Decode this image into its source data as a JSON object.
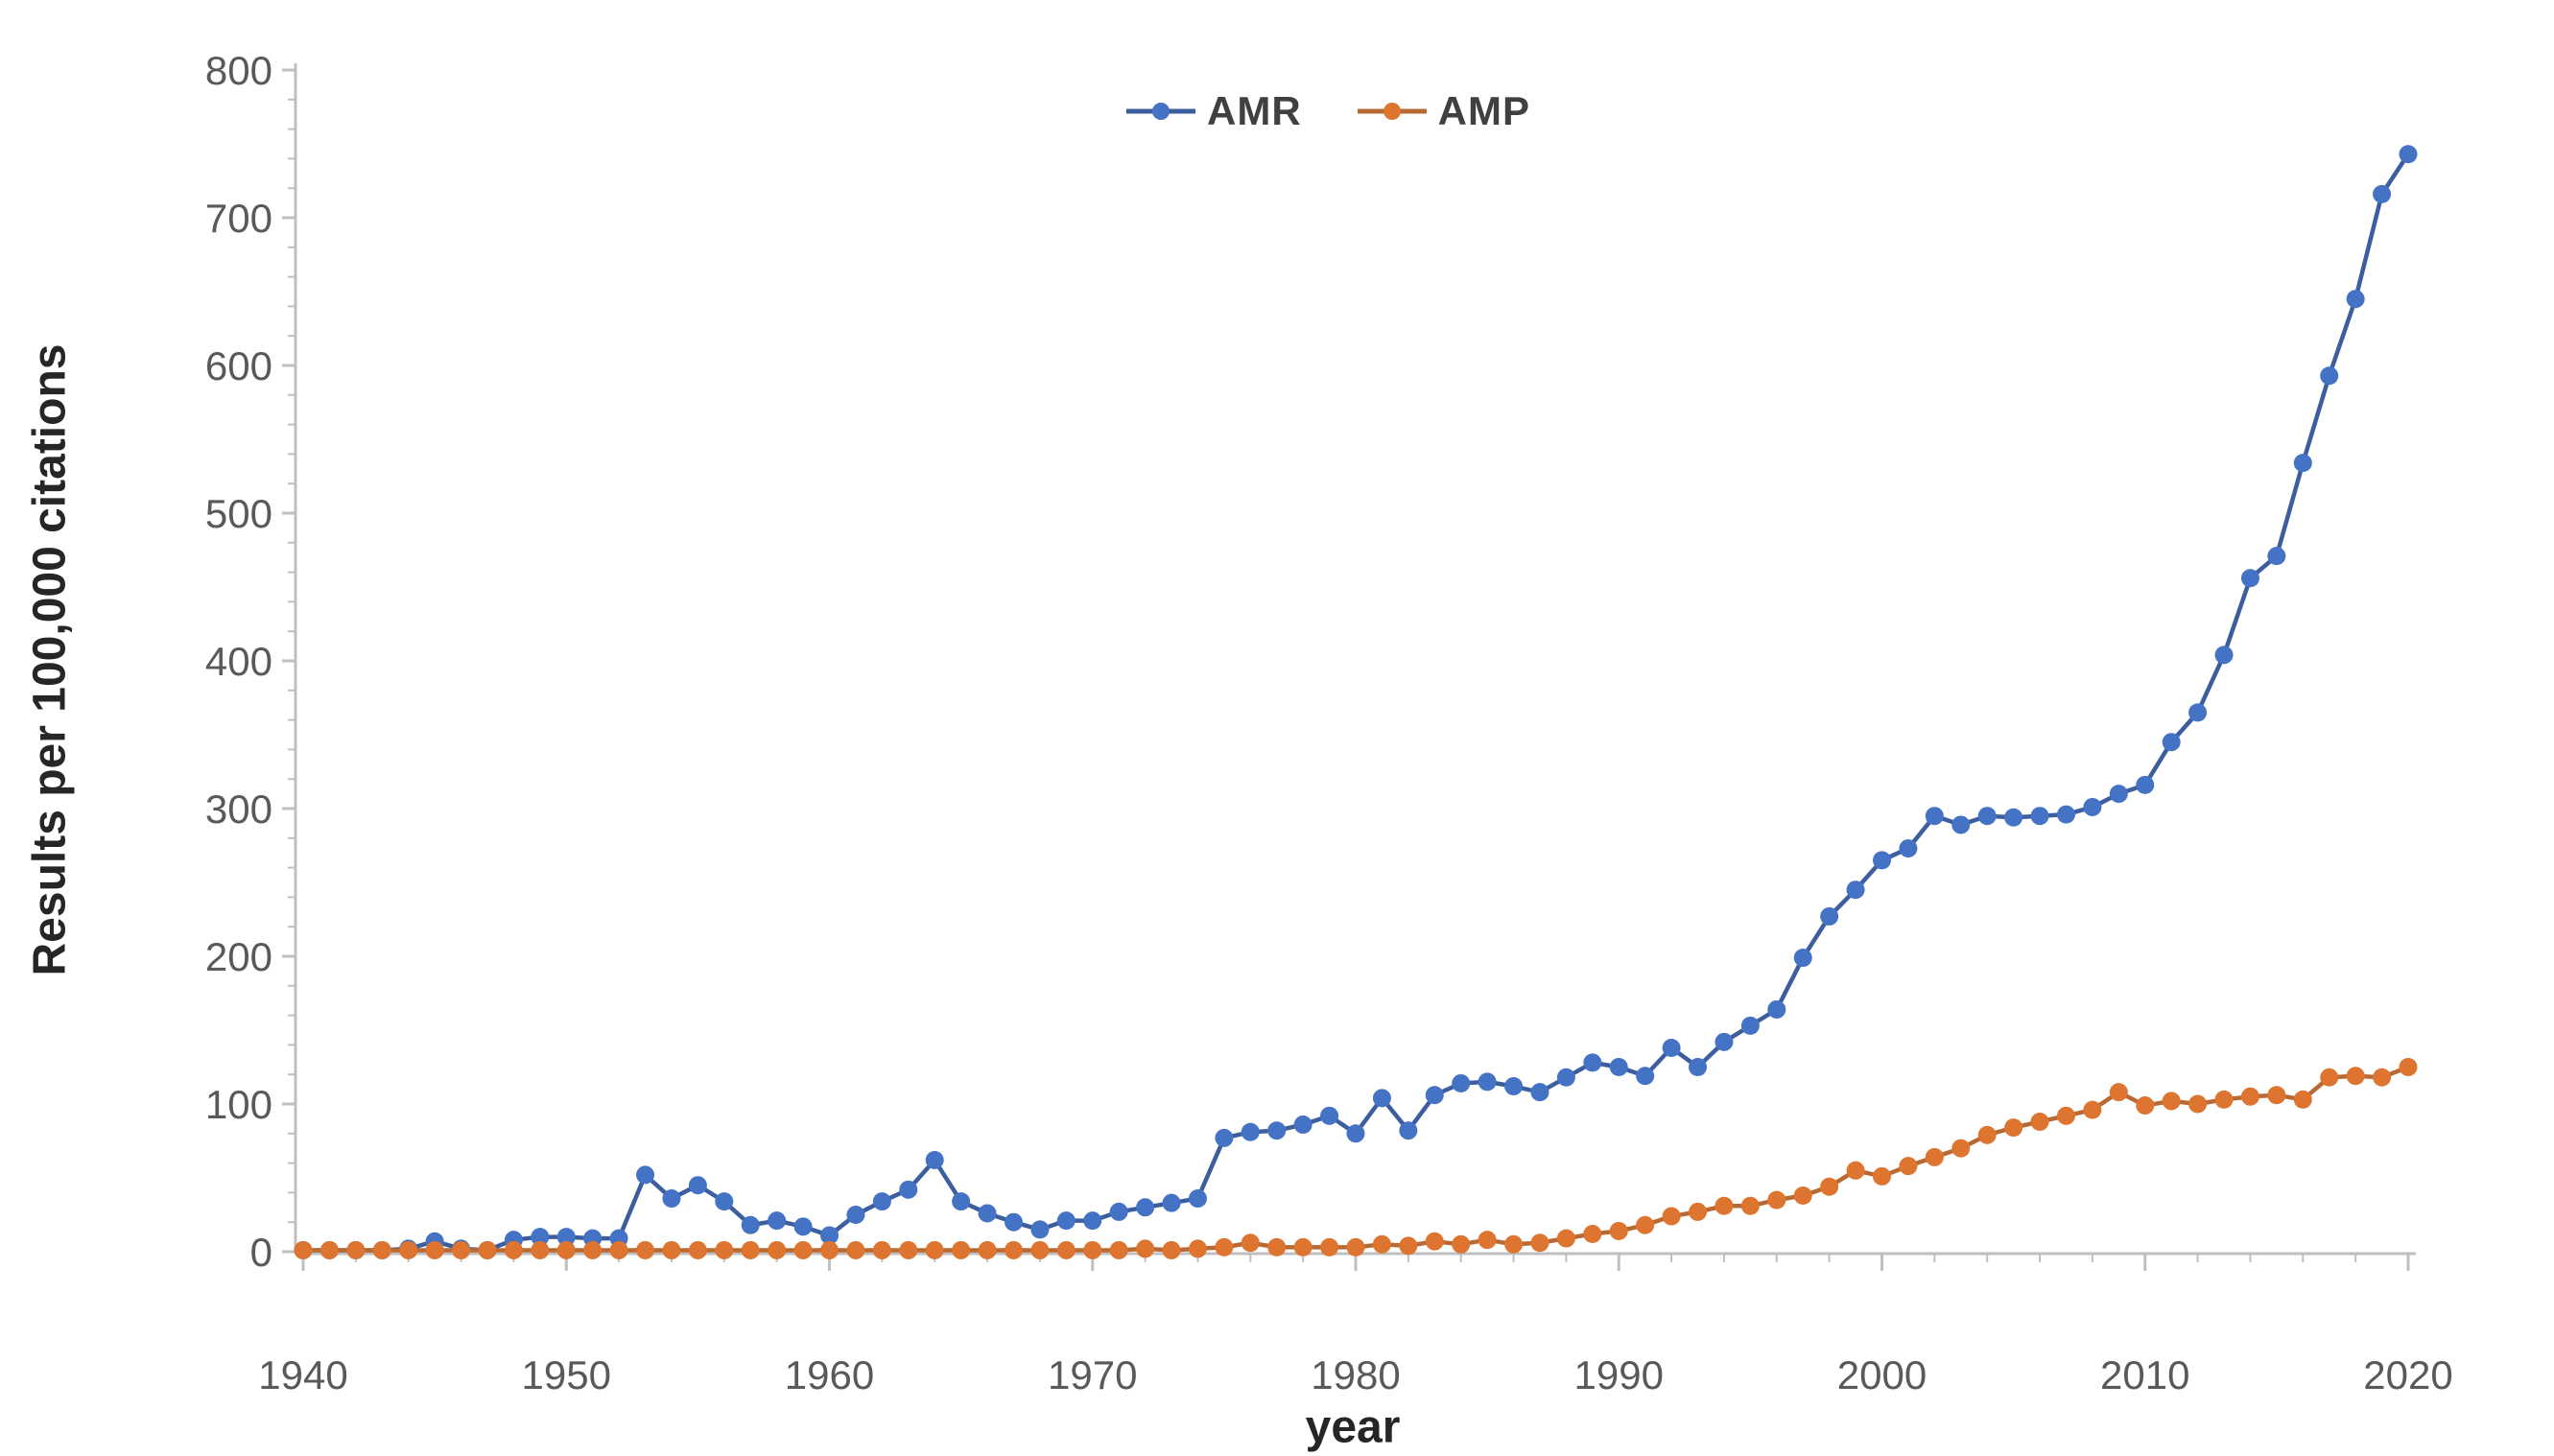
{
  "chart_data": {
    "type": "line",
    "title": "",
    "xlabel": "year",
    "ylabel": "Results per 100,000 citations",
    "xlim": [
      1940,
      2020
    ],
    "ylim": [
      0,
      800
    ],
    "x_major_ticks": [
      1940,
      1950,
      1960,
      1970,
      1980,
      1990,
      2000,
      2010,
      2020
    ],
    "x_minor_step": 2,
    "y_major_ticks": [
      0,
      100,
      200,
      300,
      400,
      500,
      600,
      700,
      800
    ],
    "y_minor_step": 20,
    "grid": false,
    "legend_position": "top-center",
    "axis_line_color": "#BFBFBF",
    "tick_label_color": "#595959",
    "x": [
      1940,
      1941,
      1942,
      1943,
      1944,
      1945,
      1946,
      1947,
      1948,
      1949,
      1950,
      1951,
      1952,
      1953,
      1954,
      1955,
      1956,
      1957,
      1958,
      1959,
      1960,
      1961,
      1962,
      1963,
      1964,
      1965,
      1966,
      1967,
      1968,
      1969,
      1970,
      1971,
      1972,
      1973,
      1974,
      1975,
      1976,
      1977,
      1978,
      1979,
      1980,
      1981,
      1982,
      1983,
      1984,
      1985,
      1986,
      1987,
      1988,
      1989,
      1990,
      1991,
      1992,
      1993,
      1994,
      1995,
      1996,
      1997,
      1998,
      1999,
      2000,
      2001,
      2002,
      2003,
      2004,
      2005,
      2006,
      2007,
      2008,
      2009,
      2010,
      2011,
      2012,
      2013,
      2014,
      2015,
      2016,
      2017,
      2018,
      2019,
      2020
    ],
    "series": [
      {
        "name": "AMR",
        "marker_color": "#4472C4",
        "line_color": "#3D5E9E",
        "values": [
          1,
          1,
          1,
          1,
          2,
          7,
          2,
          1,
          8,
          10,
          10,
          9,
          9,
          52,
          36,
          45,
          34,
          18,
          21,
          17,
          11,
          25,
          34,
          42,
          62,
          34,
          26,
          20,
          15,
          21,
          21,
          27,
          30,
          33,
          36,
          77,
          81,
          82,
          86,
          92,
          80,
          104,
          82,
          106,
          114,
          115,
          112,
          108,
          118,
          128,
          125,
          119,
          138,
          125,
          142,
          153,
          164,
          199,
          227,
          245,
          265,
          273,
          295,
          289,
          295,
          294,
          295,
          296,
          301,
          310,
          316,
          345,
          365,
          404,
          456,
          471,
          534,
          593,
          645,
          716,
          743
        ]
      },
      {
        "name": "AMP",
        "marker_color": "#DD7530",
        "line_color": "#B96A32",
        "values": [
          1,
          1,
          1,
          1,
          1,
          1,
          1,
          1,
          1,
          1,
          1,
          1,
          1,
          1,
          1,
          1,
          1,
          1,
          1,
          1,
          1,
          1,
          1,
          1,
          1,
          1,
          1,
          1,
          1,
          1,
          1,
          1,
          2,
          1,
          2,
          3,
          6,
          3,
          3,
          3,
          3,
          5,
          4,
          7,
          5,
          8,
          5,
          6,
          9,
          12,
          14,
          18,
          24,
          27,
          31,
          31,
          35,
          38,
          44,
          55,
          51,
          58,
          64,
          70,
          79,
          84,
          88,
          92,
          96,
          108,
          99,
          102,
          100,
          103,
          105,
          106,
          103,
          118,
          119,
          118,
          125
        ]
      }
    ]
  }
}
